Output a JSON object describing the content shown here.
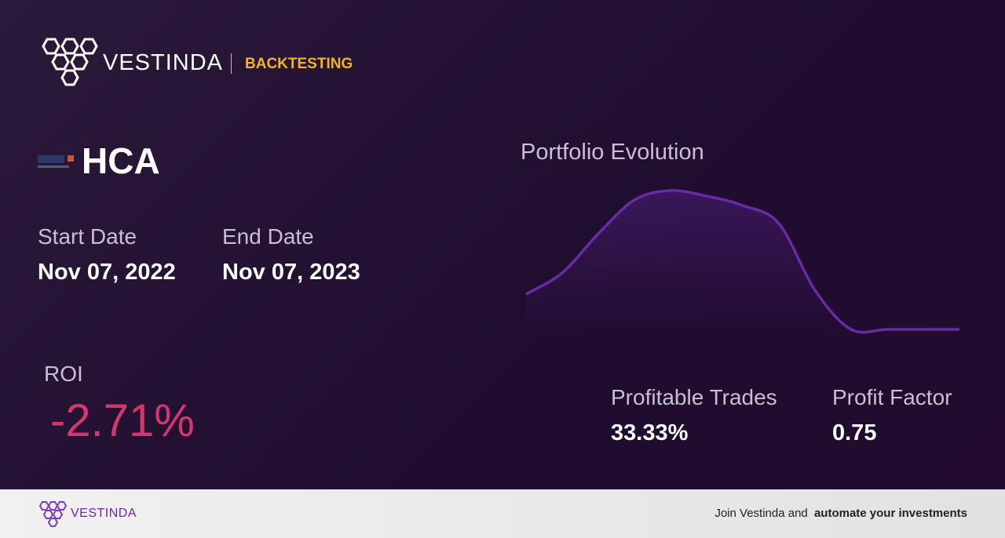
{
  "header": {
    "brand": "VESTINDA",
    "section": "BACKTESTING"
  },
  "ticker": "HCA",
  "dates": {
    "start_label": "Start Date",
    "start_value": "Nov 07, 2022",
    "end_label": "End Date",
    "end_value": "Nov 07, 2023"
  },
  "roi": {
    "label": "ROI",
    "value": "-2.71%"
  },
  "stats": [
    {
      "label": "Profitable Trades",
      "value": "33.33%"
    },
    {
      "label": "Profit Factor",
      "value": "0.75"
    }
  ],
  "chart_data": {
    "type": "line",
    "title": "Portfolio Evolution",
    "color": "#6a2aa8",
    "values": [
      55,
      82,
      132,
      175,
      187,
      180,
      168,
      145,
      60,
      10,
      10,
      10,
      10
    ],
    "ylim": [
      0,
      200
    ]
  },
  "footer": {
    "brand": "VESTINDA",
    "cta_plain": "Join Vestinda and",
    "cta_bold": "automate your investments"
  }
}
